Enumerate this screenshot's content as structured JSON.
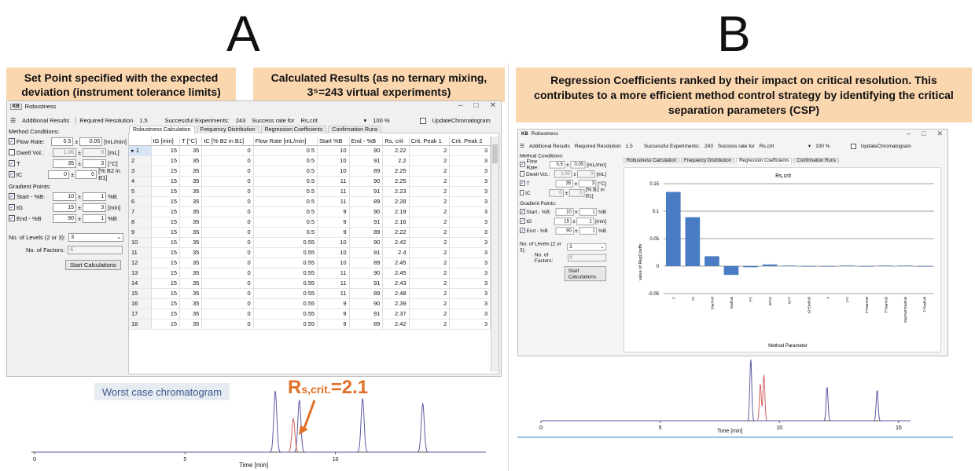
{
  "panel_a": {
    "letter": "A",
    "callout_left": "Set Point specified with the expected deviation (instrument tolerance limits)",
    "callout_right": "Calculated Results (as no ternary mixing, 3⁵=243 virtual experiments)",
    "window": {
      "title": "Robustness",
      "title_icon": "app-logo-icon",
      "additional_results": "Additional Results",
      "required_resolution_label": "Required Resolution",
      "required_resolution_value": "1.5",
      "successful_experiments_label": "Successful Experiments:",
      "successful_experiments_value": "243",
      "success_rate_label": "Success rate for",
      "success_rate_target": "Rs,crit",
      "success_rate_value": "100 %",
      "update_chromatogram": "UpdateChromatogram",
      "tabs": [
        "Robustness Calculation",
        "Frequency Distribution",
        "Regression Coefficients",
        "Confirmation Runs"
      ],
      "active_tab": 0,
      "method_conditions_label": "Method Conditions:",
      "method_conditions": [
        {
          "checked": true,
          "label": "Flow Rate:",
          "value": "0.5",
          "pm": "0.05",
          "unit": "[mL/min]",
          "disabled": false
        },
        {
          "checked": false,
          "label": "Dwell Vol.:",
          "value": "1.06",
          "pm": "0",
          "unit": "[mL]",
          "disabled": true
        },
        {
          "checked": true,
          "label": "T",
          "value": "35",
          "pm": "3",
          "unit": "[°C]",
          "disabled": false
        },
        {
          "checked": true,
          "label": "tC",
          "value": "0",
          "pm": "0",
          "unit": "[% B2 in B1]",
          "disabled": false
        }
      ],
      "gradient_points_label": "Gradient Points:",
      "gradient_points": [
        {
          "checked": true,
          "label": "Start - %B:",
          "value": "10",
          "pm": "1",
          "unit": "%B"
        },
        {
          "checked": true,
          "label": "tG",
          "value": "15",
          "pm": "3",
          "unit": "[min]"
        },
        {
          "checked": true,
          "label": "End - %B",
          "value": "90",
          "pm": "1",
          "unit": "%B"
        }
      ],
      "levels_label": "No. of Levels (2 or 3):",
      "levels_value": "3",
      "factors_label": "No. of Factors:",
      "factors_value": "6",
      "start_button": "Start Calculations",
      "table_headers": [
        "",
        "tG [min]",
        "T [°C]",
        "tC [% B2 in B1]",
        "Flow Rate [mL/min]",
        "Start %B",
        "End - %B",
        "Rs, crit",
        "Crit. Peak 1",
        "Crit. Peak 2"
      ],
      "table_rows": [
        [
          "1",
          "15",
          "35",
          "0",
          "0.5",
          "10",
          "90",
          "2.22",
          "2",
          "3"
        ],
        [
          "2",
          "15",
          "35",
          "0",
          "0.5",
          "10",
          "91",
          "2.2",
          "2",
          "3"
        ],
        [
          "3",
          "15",
          "35",
          "0",
          "0.5",
          "10",
          "89",
          "2.25",
          "2",
          "3"
        ],
        [
          "4",
          "15",
          "35",
          "0",
          "0.5",
          "11",
          "90",
          "2.25",
          "2",
          "3"
        ],
        [
          "5",
          "15",
          "35",
          "0",
          "0.5",
          "11",
          "91",
          "2.23",
          "2",
          "3"
        ],
        [
          "6",
          "15",
          "35",
          "0",
          "0.5",
          "11",
          "89",
          "2.28",
          "2",
          "3"
        ],
        [
          "7",
          "15",
          "35",
          "0",
          "0.5",
          "9",
          "90",
          "2.19",
          "2",
          "3"
        ],
        [
          "8",
          "15",
          "35",
          "0",
          "0.5",
          "9",
          "91",
          "2.16",
          "2",
          "3"
        ],
        [
          "9",
          "15",
          "35",
          "0",
          "0.5",
          "9",
          "89",
          "2.22",
          "2",
          "3"
        ],
        [
          "10",
          "15",
          "35",
          "0",
          "0.55",
          "10",
          "90",
          "2.42",
          "2",
          "3"
        ],
        [
          "11",
          "15",
          "35",
          "0",
          "0.55",
          "10",
          "91",
          "2.4",
          "2",
          "3"
        ],
        [
          "12",
          "15",
          "35",
          "0",
          "0.55",
          "10",
          "89",
          "2.45",
          "2",
          "3"
        ],
        [
          "13",
          "15",
          "35",
          "0",
          "0.55",
          "11",
          "90",
          "2.45",
          "2",
          "3"
        ],
        [
          "14",
          "15",
          "35",
          "0",
          "0.55",
          "11",
          "91",
          "2.43",
          "2",
          "3"
        ],
        [
          "15",
          "15",
          "35",
          "0",
          "0.55",
          "11",
          "89",
          "2.48",
          "2",
          "3"
        ],
        [
          "16",
          "15",
          "35",
          "0",
          "0.55",
          "9",
          "90",
          "2.39",
          "2",
          "3"
        ],
        [
          "17",
          "15",
          "35",
          "0",
          "0.55",
          "9",
          "91",
          "2.37",
          "2",
          "3"
        ],
        [
          "18",
          "15",
          "35",
          "0",
          "0.55",
          "9",
          "89",
          "2.42",
          "2",
          "3"
        ]
      ]
    },
    "chromatogram": {
      "label": "Worst case chromatogram",
      "rs_main": "R",
      "rs_sub": "s,crit.",
      "rs_value": "=2.1",
      "xlabel": "Time [min]",
      "ticks": [
        "0",
        "5",
        "10"
      ],
      "line_color": "#5a5aa0",
      "highlight_color": "#d06060"
    }
  },
  "panel_b": {
    "letter": "B",
    "callout": "Regression Coefficients ranked by their impact on critical resolution. This contributes to a more efficient method control strategy by identifying the critical separation parameters (CSP)",
    "window": {
      "title": "Robustness",
      "additional_results": "Additional Results",
      "required_resolution_label": "Required Resolution",
      "required_resolution_value": "1.5",
      "successful_experiments_label": "Successful Experiments:",
      "successful_experiments_value": "243",
      "success_rate_label": "Success rate for",
      "success_rate_target": "Rs,crit",
      "success_rate_value": "100 %",
      "update_chromatogram": "UpdateChromatogram",
      "tabs": [
        "Robustness Calculation",
        "Frequency Distribution",
        "Regression Coefficients",
        "Confirmation Runs"
      ],
      "active_tab": 2,
      "method_conditions_label": "Method Conditions:",
      "method_conditions": [
        {
          "checked": true,
          "label": "Flow Rate:",
          "value": "0.5",
          "pm": "0.05",
          "unit": "[mL/min]",
          "disabled": false
        },
        {
          "checked": false,
          "label": "Dwell Vol.:",
          "value": "1.06",
          "pm": "0",
          "unit": "[mL]",
          "disabled": true
        },
        {
          "checked": true,
          "label": "T",
          "value": "35",
          "pm": "3",
          "unit": "[°C]",
          "disabled": false
        },
        {
          "checked": false,
          "label": "tC",
          "value": "0",
          "pm": "0",
          "unit": "[% B2 in B1]",
          "disabled": true
        }
      ],
      "gradient_points_label": "Gradient Points:",
      "gradient_points": [
        {
          "checked": true,
          "label": "Start - %B:",
          "value": "10",
          "pm": "1",
          "unit": "%B"
        },
        {
          "checked": true,
          "label": "tG",
          "value": "15",
          "pm": "1",
          "unit": "[min]"
        },
        {
          "checked": true,
          "label": "End - %B",
          "value": "90",
          "pm": "1",
          "unit": "%B"
        }
      ],
      "levels_label": "No. of Levels (2 or 3):",
      "levels_value": "3",
      "factors_label": "No. of Factors:",
      "factors_value": "6",
      "start_button": "Start Calculations"
    },
    "chromatogram": {
      "xlabel": "Time [min]",
      "ticks": [
        "0",
        "5",
        "10",
        "15"
      ],
      "line_color": "#5a5aa0",
      "highlight_color": "#d06060"
    }
  },
  "chart_data": {
    "type": "bar",
    "title": "Rs,crit",
    "xlabel": "Method Parameter",
    "ylabel": "value of RegCoeffs",
    "ylim": [
      -0.05,
      0.15
    ],
    "yticks": [
      "0.15",
      "0.1",
      "0.05",
      "0",
      "-0.05"
    ],
    "categories": [
      "F",
      "tG",
      "Start%B",
      "End%B",
      "T*T",
      "tG*tG",
      "tG*T",
      "tG*End%B",
      "T",
      "F*T",
      "F*Start%B",
      "T*Start%B",
      "Start%B*End%B",
      "F*End%B"
    ],
    "values": [
      0.135,
      0.089,
      0.018,
      -0.016,
      -0.002,
      0.003,
      0.001,
      0.0,
      0.0,
      0.001,
      0.0,
      0.001,
      0.001,
      0.0
    ],
    "bar_color": "#4a7cc4",
    "grid": true
  }
}
